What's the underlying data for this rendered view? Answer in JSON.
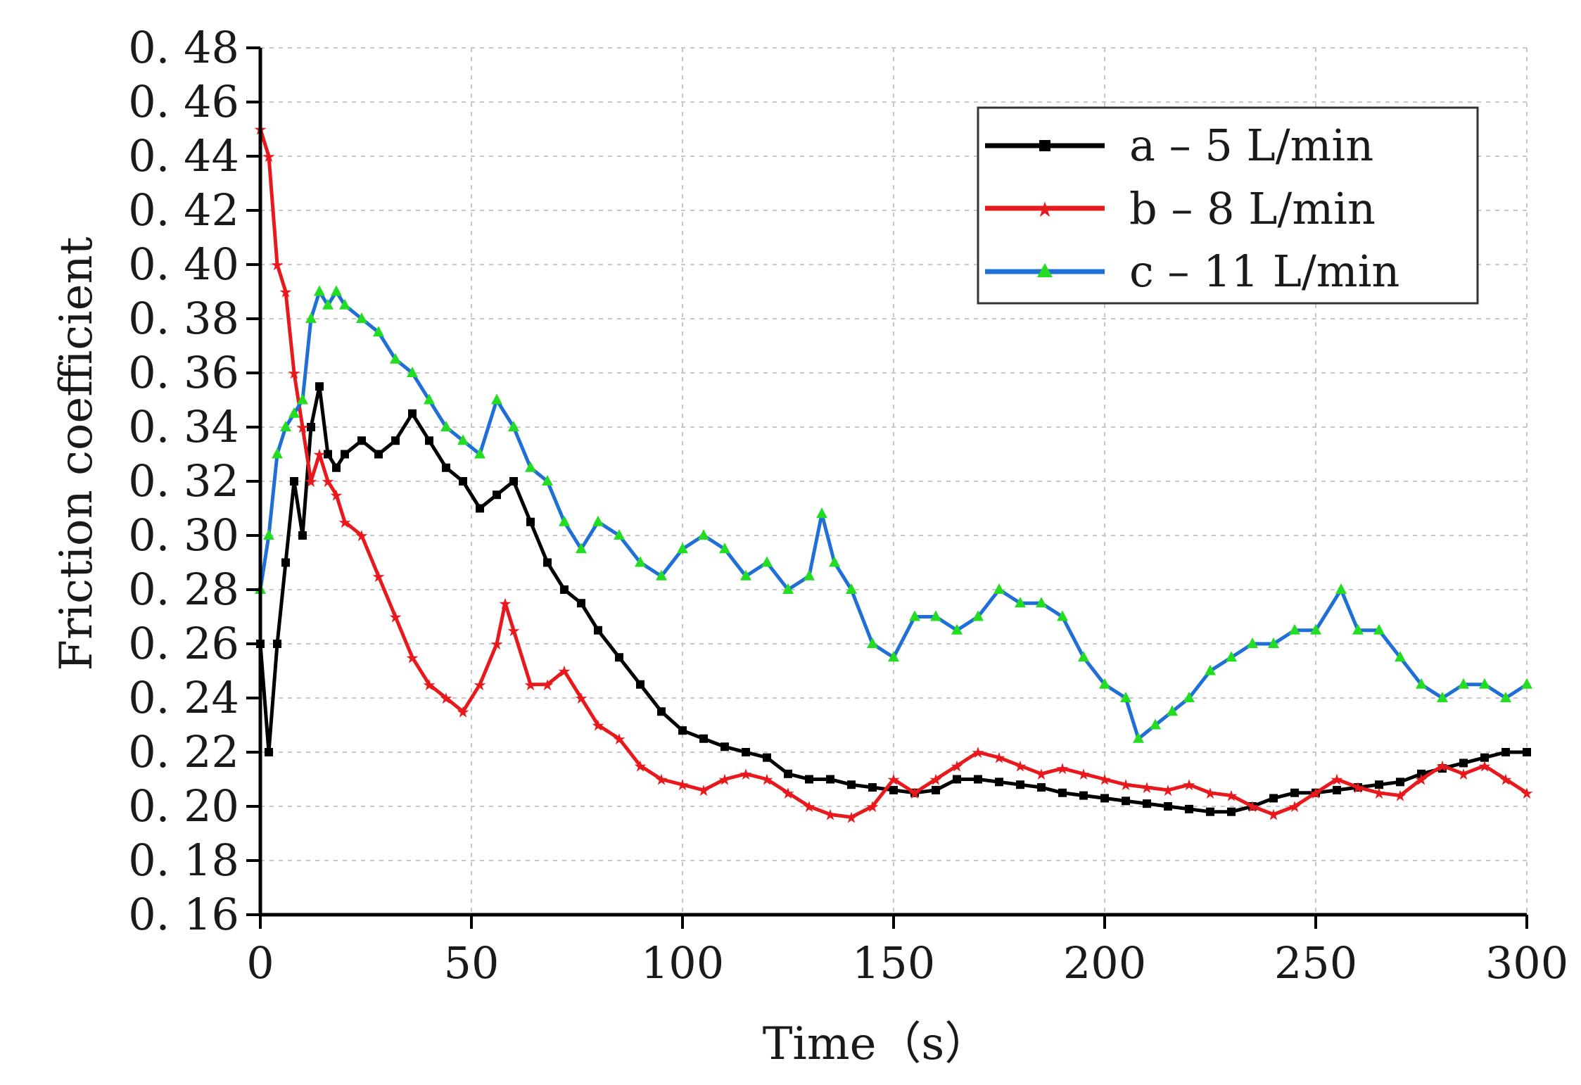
{
  "chart_data": {
    "type": "line",
    "title": "",
    "xlabel": "Time（s）",
    "ylabel": "Friction coefficient",
    "xlim": [
      0,
      300
    ],
    "ylim": [
      0.16,
      0.48
    ],
    "grid": true,
    "legend_position": "top-right",
    "x_ticks": [
      "0",
      "50",
      "100",
      "150",
      "200",
      "250",
      "300"
    ],
    "y_ticks": [
      "0.16",
      "0.18",
      "0.20",
      "0.22",
      "0.24",
      "0.26",
      "0.28",
      "0.30",
      "0.32",
      "0.34",
      "0.36",
      "0.38",
      "0.40",
      "0.42",
      "0.44",
      "0.46",
      "0.48"
    ],
    "series": [
      {
        "name": "a – 5 L/min",
        "color": "#000000",
        "marker": "square",
        "x": [
          0,
          2,
          4,
          6,
          8,
          10,
          12,
          14,
          16,
          18,
          20,
          24,
          28,
          32,
          36,
          40,
          44,
          48,
          52,
          56,
          60,
          64,
          68,
          72,
          76,
          80,
          85,
          90,
          95,
          100,
          105,
          110,
          115,
          120,
          125,
          130,
          135,
          140,
          145,
          150,
          155,
          160,
          165,
          170,
          175,
          180,
          185,
          190,
          195,
          200,
          205,
          210,
          215,
          220,
          225,
          230,
          235,
          240,
          245,
          250,
          255,
          260,
          265,
          270,
          275,
          280,
          285,
          290,
          295,
          300
        ],
        "y": [
          0.26,
          0.22,
          0.26,
          0.29,
          0.32,
          0.3,
          0.34,
          0.355,
          0.33,
          0.325,
          0.33,
          0.335,
          0.33,
          0.335,
          0.345,
          0.335,
          0.325,
          0.32,
          0.31,
          0.315,
          0.32,
          0.305,
          0.29,
          0.28,
          0.275,
          0.265,
          0.255,
          0.245,
          0.235,
          0.228,
          0.225,
          0.222,
          0.22,
          0.218,
          0.212,
          0.21,
          0.21,
          0.208,
          0.207,
          0.206,
          0.205,
          0.206,
          0.21,
          0.21,
          0.209,
          0.208,
          0.207,
          0.205,
          0.204,
          0.203,
          0.202,
          0.201,
          0.2,
          0.199,
          0.198,
          0.198,
          0.2,
          0.203,
          0.205,
          0.205,
          0.206,
          0.207,
          0.208,
          0.209,
          0.212,
          0.214,
          0.216,
          0.218,
          0.22,
          0.22
        ]
      },
      {
        "name": "b – 8 L/min",
        "color": "#e8191c",
        "marker": "star",
        "x": [
          0,
          2,
          4,
          6,
          8,
          10,
          12,
          14,
          16,
          18,
          20,
          24,
          28,
          32,
          36,
          40,
          44,
          48,
          52,
          56,
          58,
          60,
          64,
          68,
          72,
          76,
          80,
          85,
          90,
          95,
          100,
          105,
          110,
          115,
          120,
          125,
          130,
          135,
          140,
          145,
          150,
          155,
          160,
          165,
          170,
          175,
          180,
          185,
          190,
          195,
          200,
          205,
          210,
          215,
          220,
          225,
          230,
          235,
          240,
          245,
          250,
          255,
          260,
          265,
          270,
          275,
          280,
          285,
          290,
          295,
          300
        ],
        "y": [
          0.45,
          0.44,
          0.4,
          0.39,
          0.36,
          0.34,
          0.32,
          0.33,
          0.32,
          0.315,
          0.305,
          0.3,
          0.285,
          0.27,
          0.255,
          0.245,
          0.24,
          0.235,
          0.245,
          0.26,
          0.275,
          0.265,
          0.245,
          0.245,
          0.25,
          0.24,
          0.23,
          0.225,
          0.215,
          0.21,
          0.208,
          0.206,
          0.21,
          0.212,
          0.21,
          0.205,
          0.2,
          0.197,
          0.196,
          0.2,
          0.21,
          0.205,
          0.21,
          0.215,
          0.22,
          0.218,
          0.215,
          0.212,
          0.214,
          0.212,
          0.21,
          0.208,
          0.207,
          0.206,
          0.208,
          0.205,
          0.204,
          0.2,
          0.197,
          0.2,
          0.205,
          0.21,
          0.207,
          0.205,
          0.204,
          0.21,
          0.215,
          0.212,
          0.215,
          0.21,
          0.205
        ]
      },
      {
        "name": "c – 11 L/min",
        "color": "#1f6fd6",
        "marker_color": "#22dd22",
        "marker": "triangle",
        "x": [
          0,
          2,
          4,
          6,
          8,
          10,
          12,
          14,
          16,
          18,
          20,
          24,
          28,
          32,
          36,
          40,
          44,
          48,
          52,
          56,
          60,
          64,
          68,
          72,
          76,
          80,
          85,
          90,
          95,
          100,
          105,
          110,
          115,
          120,
          125,
          130,
          133,
          136,
          140,
          145,
          150,
          155,
          160,
          165,
          170,
          175,
          180,
          185,
          190,
          195,
          200,
          205,
          208,
          212,
          216,
          220,
          225,
          230,
          235,
          240,
          245,
          250,
          256,
          260,
          265,
          270,
          275,
          280,
          285,
          290,
          295,
          300
        ],
        "y": [
          0.28,
          0.3,
          0.33,
          0.34,
          0.345,
          0.35,
          0.38,
          0.39,
          0.385,
          0.39,
          0.385,
          0.38,
          0.375,
          0.365,
          0.36,
          0.35,
          0.34,
          0.335,
          0.33,
          0.35,
          0.34,
          0.325,
          0.32,
          0.305,
          0.295,
          0.305,
          0.3,
          0.29,
          0.285,
          0.295,
          0.3,
          0.295,
          0.285,
          0.29,
          0.28,
          0.285,
          0.308,
          0.29,
          0.28,
          0.26,
          0.255,
          0.27,
          0.27,
          0.265,
          0.27,
          0.28,
          0.275,
          0.275,
          0.27,
          0.255,
          0.245,
          0.24,
          0.225,
          0.23,
          0.235,
          0.24,
          0.25,
          0.255,
          0.26,
          0.26,
          0.265,
          0.265,
          0.28,
          0.265,
          0.265,
          0.255,
          0.245,
          0.24,
          0.245,
          0.245,
          0.24,
          0.245
        ]
      }
    ]
  }
}
